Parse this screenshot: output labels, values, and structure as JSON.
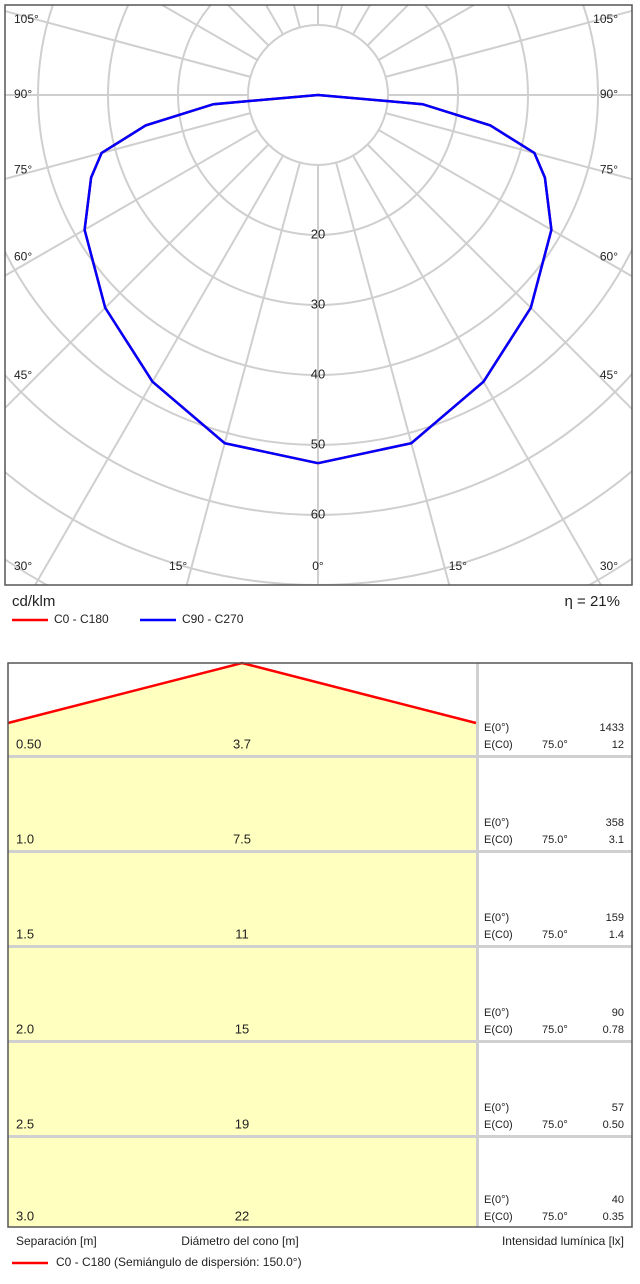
{
  "chart_data": [
    {
      "type": "polar",
      "unit_label": "cd/klm",
      "efficiency_label": "η = 21%",
      "angles": [
        0,
        15,
        30,
        45,
        60,
        70,
        75,
        80,
        85,
        90
      ],
      "series": [
        {
          "name": "C0 - C180",
          "color": "#ff0000",
          "values": [
            52.6,
            51.5,
            47.3,
            43,
            38.5,
            34.5,
            32,
            25,
            15,
            0
          ]
        },
        {
          "name": "C90 - C270",
          "color": "#0000ff",
          "values": [
            52.6,
            51.5,
            47.3,
            43,
            38.5,
            34.5,
            32,
            25,
            15,
            0
          ]
        }
      ],
      "rlim": [
        0,
        70
      ],
      "rticks": [
        20,
        30,
        40,
        50,
        60
      ],
      "angle_ticks": [
        {
          "value": 0,
          "label": "0°"
        },
        {
          "value": 15,
          "label": "15°"
        },
        {
          "value": 30,
          "label": "30°"
        },
        {
          "value": 45,
          "label": "45°"
        },
        {
          "value": 60,
          "label": "60°"
        },
        {
          "value": 75,
          "label": "75°"
        },
        {
          "value": 90,
          "label": "90°"
        },
        {
          "value": 105,
          "label": "105°"
        }
      ]
    },
    {
      "type": "cone",
      "color": "#ff0000",
      "rows": [
        {
          "height": "0.50",
          "diameter": "3.7",
          "e0_label": "E(0°)",
          "e0": "1433",
          "ec0_label": "E(C0)",
          "ec0_angle": "75.0°",
          "ec0": "12"
        },
        {
          "height": "1.0",
          "diameter": "7.5",
          "e0_label": "E(0°)",
          "e0": "358",
          "ec0_label": "E(C0)",
          "ec0_angle": "75.0°",
          "ec0": "3.1"
        },
        {
          "height": "1.5",
          "diameter": "11",
          "e0_label": "E(0°)",
          "e0": "159",
          "ec0_label": "E(C0)",
          "ec0_angle": "75.0°",
          "ec0": "1.4"
        },
        {
          "height": "2.0",
          "diameter": "15",
          "e0_label": "E(0°)",
          "e0": "90",
          "ec0_label": "E(C0)",
          "ec0_angle": "75.0°",
          "ec0": "0.78"
        },
        {
          "height": "2.5",
          "diameter": "19",
          "e0_label": "E(0°)",
          "e0": "57",
          "ec0_label": "E(C0)",
          "ec0_angle": "75.0°",
          "ec0": "0.50"
        },
        {
          "height": "3.0",
          "diameter": "22",
          "e0_label": "E(0°)",
          "e0": "40",
          "ec0_label": "E(C0)",
          "ec0_angle": "75.0°",
          "ec0": "0.35"
        }
      ],
      "x_label": "Separación [m]",
      "diameter_label": "Diámetro del cono [m]",
      "illuminance_label": "Intensidad lumínica [lx]",
      "legend": "C0 - C180 (Semiángulo de dispersión: 150.0°)"
    }
  ]
}
